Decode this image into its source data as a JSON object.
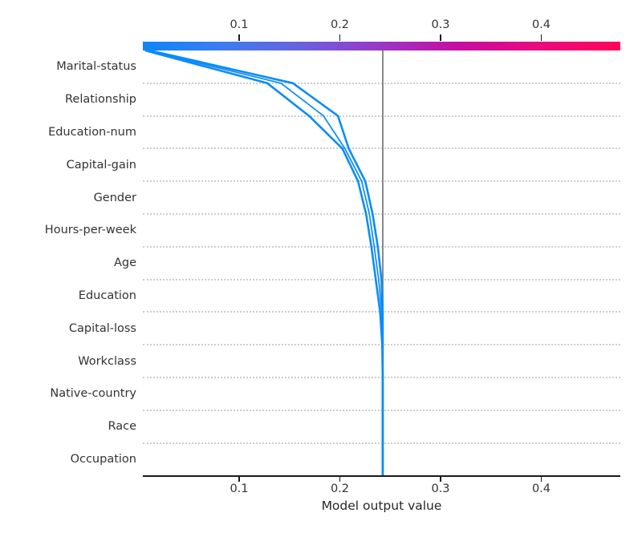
{
  "figure": {
    "xlabel": "Model output value",
    "x_tick_labels": [
      "0.1",
      "0.2",
      "0.3",
      "0.4"
    ],
    "colorbar_tick_labels": [
      "0.1",
      "0.2",
      "0.3",
      "0.4"
    ]
  },
  "colors": {
    "line_blue": "#0a8cfb",
    "base_line_gray": "#8a8a8a",
    "gridline_gray": "#cdcdcd",
    "tick_text": "#333333",
    "axis_black": "#1a1a1a",
    "colorbar_gradient": [
      "#0b86f8",
      "#3d7cf0",
      "#6a61e0",
      "#9a36c6",
      "#c70da0",
      "#ea0b7e",
      "#ff0456"
    ]
  },
  "chart_data": {
    "type": "line",
    "subtype": "shap-decision-plot",
    "title": "",
    "xlabel": "Model output value",
    "ylabel": "",
    "grid": "dotted-horizontal",
    "legend": "none",
    "x_ticks": [
      0.1,
      0.2,
      0.3,
      0.4
    ],
    "xlim": [
      0.0044,
      0.4785
    ],
    "base_value": 0.2426,
    "features_top_to_bottom": [
      "Marital-status",
      "Relationship",
      "Education-num",
      "Capital-gain",
      "Gender",
      "Hours-per-week",
      "Age",
      "Education",
      "Capital-loss",
      "Workclass",
      "Native-country",
      "Race",
      "Occupation"
    ],
    "features_bottom_to_top": [
      "Occupation",
      "Race",
      "Native-country",
      "Workclass",
      "Capital-loss",
      "Education",
      "Age",
      "Hours-per-week",
      "Gender",
      "Capital-gain",
      "Education-num",
      "Relationship",
      "Marital-status"
    ],
    "colorbar": {
      "tick_values": [
        0.1,
        0.2,
        0.3,
        0.4
      ],
      "range_maps_to": "xlim"
    },
    "lines": [
      {
        "name": "observation-1",
        "stroke_width": 2.6,
        "cumulative_bottom_to_top": [
          0.2426,
          0.2426,
          0.2426,
          0.2426,
          0.2421,
          0.24,
          0.2356,
          0.2313,
          0.2261,
          0.2181,
          0.2026,
          0.1694,
          0.128,
          0.0068
        ]
      },
      {
        "name": "observation-2",
        "stroke_width": 1.7,
        "cumulative_bottom_to_top": [
          0.2426,
          0.2426,
          0.2426,
          0.2426,
          0.2426,
          0.2417,
          0.2385,
          0.2341,
          0.2293,
          0.2217,
          0.205,
          0.1838,
          0.1415,
          0.009
        ]
      },
      {
        "name": "observation-3",
        "stroke_width": 2.6,
        "cumulative_bottom_to_top": [
          0.2426,
          0.2426,
          0.2426,
          0.2426,
          0.2426,
          0.2426,
          0.2413,
          0.2377,
          0.2325,
          0.2253,
          0.2089,
          0.1981,
          0.1534,
          0.0113
        ]
      }
    ]
  }
}
